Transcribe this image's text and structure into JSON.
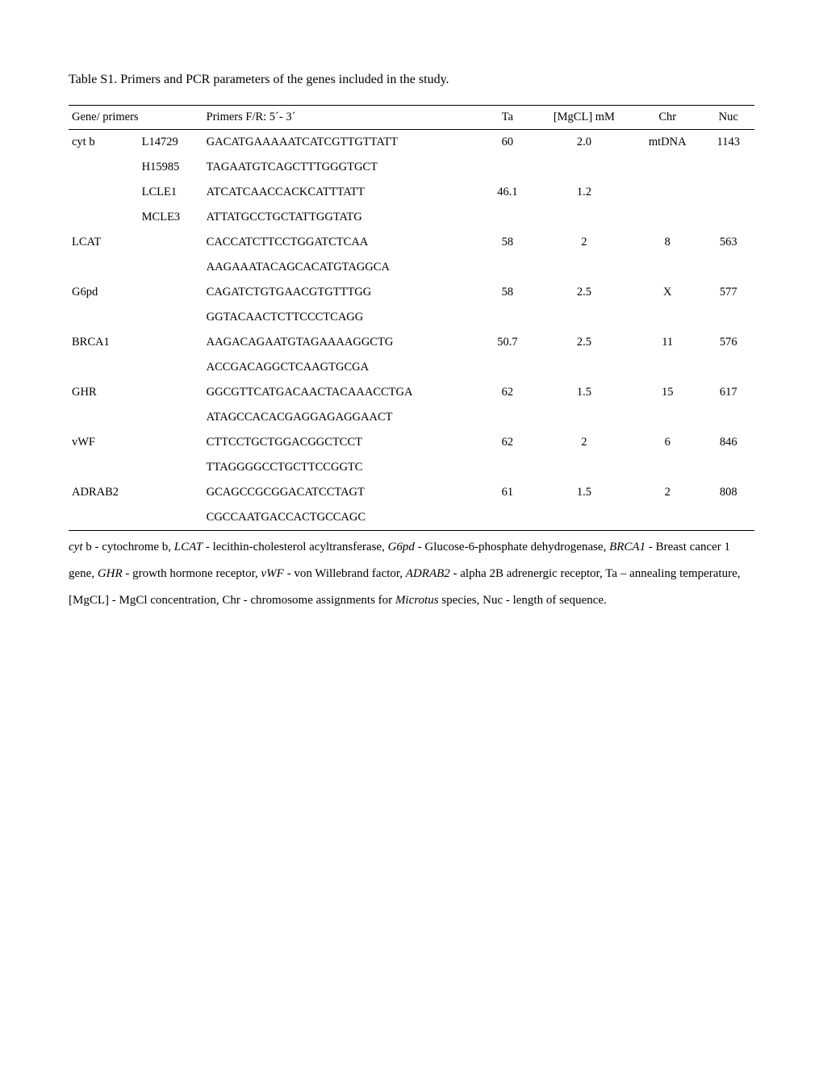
{
  "title": "Table S1. Primers and PCR parameters of the genes included in the study.",
  "headers": {
    "gene": "Gene/ primers",
    "seq": "Primers F/R: 5´- 3´",
    "ta": "Ta",
    "mg": "[MgCL] mM",
    "chr": "Chr",
    "nuc": "Nuc"
  },
  "rows": [
    {
      "gene": "cyt b",
      "primer": "L14729",
      "seq": "GACATGAAAAATCATCGTTGTTATT",
      "ta": "60",
      "mg": "2.0",
      "chr": "mtDNA",
      "nuc": "1143"
    },
    {
      "gene": "",
      "primer": "H15985",
      "seq": "TAGAATGTCAGCTTTGGGTGCT",
      "ta": "",
      "mg": "",
      "chr": "",
      "nuc": ""
    },
    {
      "gene": "",
      "primer": "LCLE1",
      "seq": "ATCATCAACCACKCATTTATT",
      "ta": "46.1",
      "mg": "1.2",
      "chr": "",
      "nuc": ""
    },
    {
      "gene": "",
      "primer": "MCLE3",
      "seq": "ATTATGCCTGCTATTGGTATG",
      "ta": "",
      "mg": "",
      "chr": "",
      "nuc": ""
    },
    {
      "gene": "LCAT",
      "primer": "",
      "seq": "CACCATCTTCCTGGATCTCAA",
      "ta": "58",
      "mg": "2",
      "chr": "8",
      "nuc": "563"
    },
    {
      "gene": "",
      "primer": "",
      "seq": "AAGAAATACAGCACATGTAGGCA",
      "ta": "",
      "mg": "",
      "chr": "",
      "nuc": ""
    },
    {
      "gene": "G6pd",
      "primer": "",
      "seq": "CAGATCTGTGAACGTGTTTGG",
      "ta": "58",
      "mg": "2.5",
      "chr": "X",
      "nuc": "577"
    },
    {
      "gene": "",
      "primer": "",
      "seq": "GGTACAACTCTTCCCTCAGG",
      "ta": "",
      "mg": "",
      "chr": "",
      "nuc": ""
    },
    {
      "gene": "BRCA1",
      "primer": "",
      "seq": "AAGACAGAATGTAGAAAAGGCTG",
      "ta": "50.7",
      "mg": "2.5",
      "chr": "11",
      "nuc": "576"
    },
    {
      "gene": "",
      "primer": "",
      "seq": "ACCGACAGGCTCAAGTGCGA",
      "ta": "",
      "mg": "",
      "chr": "",
      "nuc": ""
    },
    {
      "gene": "GHR",
      "primer": "",
      "seq": "GGCGTTCATGACAACTACAAACCTGA",
      "ta": "62",
      "mg": "1.5",
      "chr": "15",
      "nuc": "617"
    },
    {
      "gene": "",
      "primer": "",
      "seq": "ATAGCCACACGAGGAGAGGAACT",
      "ta": "",
      "mg": "",
      "chr": "",
      "nuc": ""
    },
    {
      "gene": "vWF",
      "primer": "",
      "seq": "CTTCCTGCTGGACGGCTCCT",
      "ta": "62",
      "mg": "2",
      "chr": "6",
      "nuc": "846"
    },
    {
      "gene": "",
      "primer": "",
      "seq": "TTAGGGGCCTGCTTCCGGTC",
      "ta": "",
      "mg": "",
      "chr": "",
      "nuc": ""
    },
    {
      "gene": "ADRAB2",
      "primer": "",
      "seq": "GCAGCCGCGGACATCCTAGT",
      "ta": "61",
      "mg": "1.5",
      "chr": "2",
      "nuc": "808"
    },
    {
      "gene": "",
      "primer": "",
      "seq": "CGCCAATGACCACTGCCAGC",
      "ta": "",
      "mg": "",
      "chr": "",
      "nuc": ""
    }
  ],
  "footnote": {
    "p1a": "cyt",
    "p1b": " b - cytochrome b, ",
    "p2a": "LCAT",
    "p2b": " - lecithin-cholesterol acyltransferase, ",
    "p3a": "G6pd",
    "p3b": " - Glucose-6-phosphate dehydrogenase,  ",
    "p4a": "BRCA1",
    "p4b": " - Breast cancer 1 gene, ",
    "p5a": "GHR",
    "p5b": " - growth hormone receptor, ",
    "p6a": "vWF",
    "p6b": " - von Willebrand factor, ",
    "p7a": "ADRAB2",
    "p7b": " - alpha 2B adrenergic receptor, Ta – annealing temperature, [MgCL] - MgCl concentration, Chr - chromosome assignments for ",
    "p8a": "Microtus",
    "p8b": " species, Nuc - length of sequence."
  }
}
